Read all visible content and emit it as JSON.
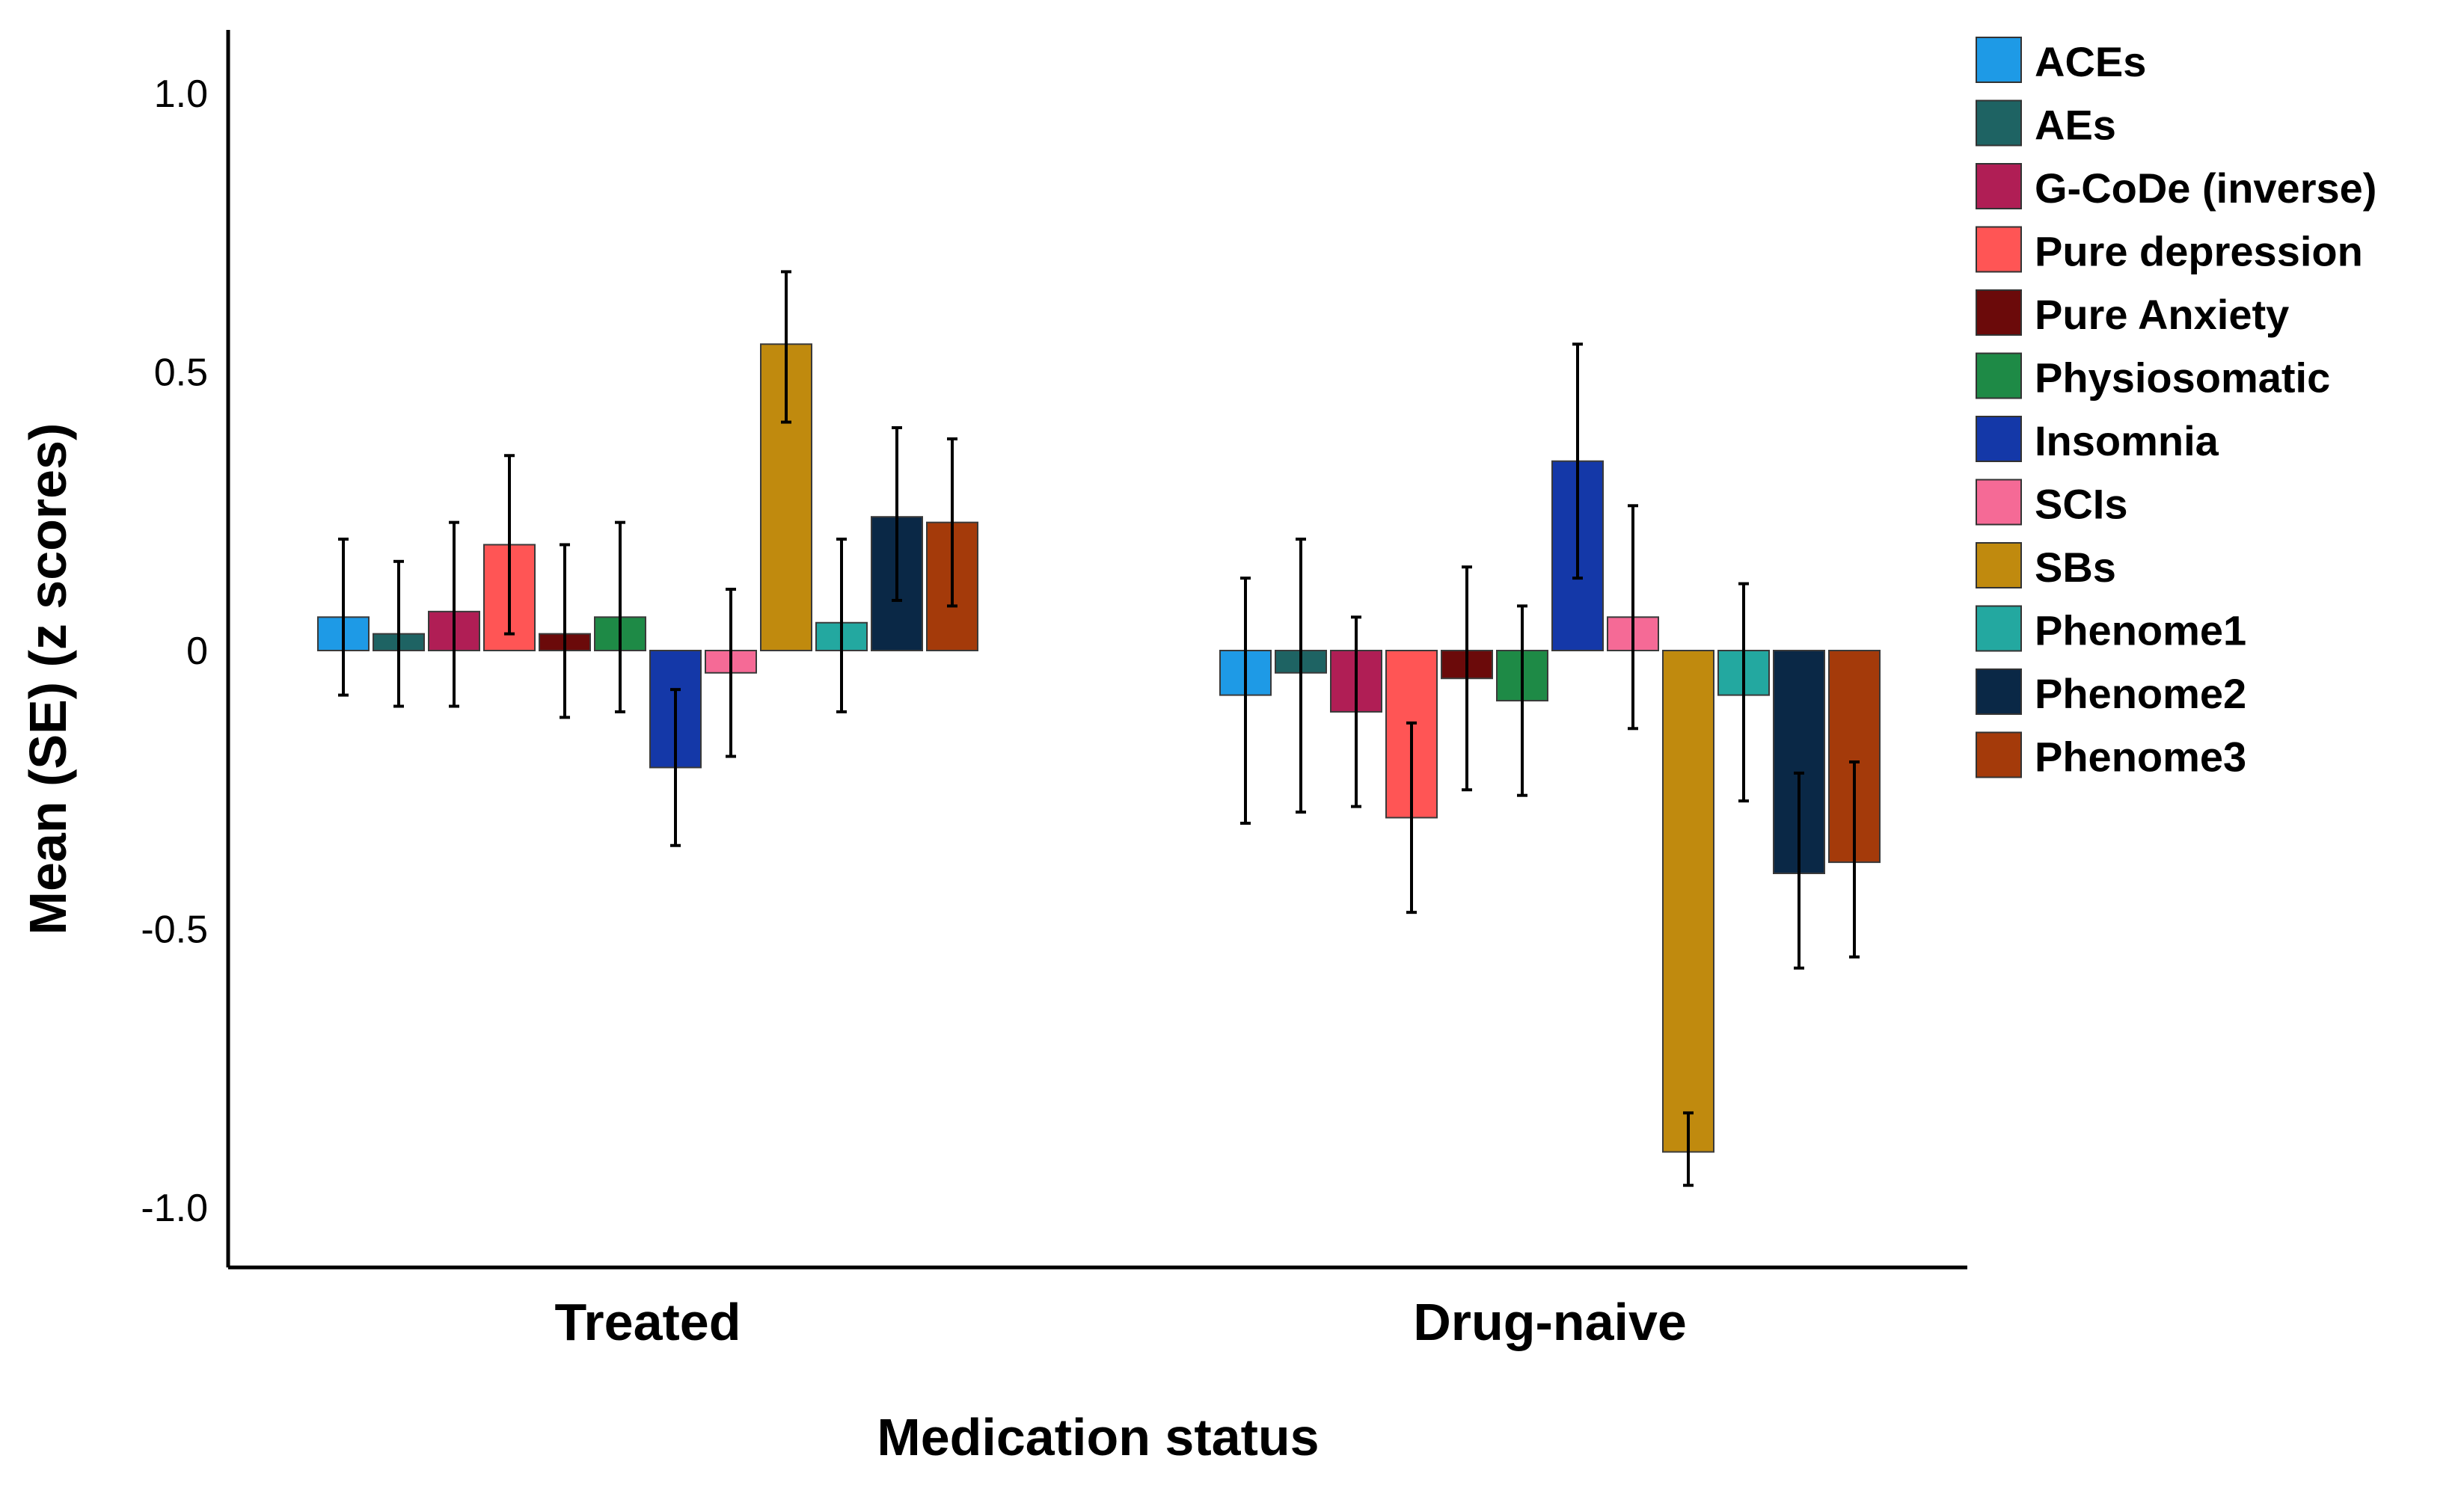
{
  "chart_data": {
    "type": "bar",
    "title": "",
    "xlabel": "Medication status",
    "ylabel": "Mean (SE) (z scores)",
    "categories": [
      "Treated",
      "Drug-naive"
    ],
    "ylim": [
      -1.1,
      1.12
    ],
    "yticks": [
      1.0,
      0.5,
      0,
      -0.5,
      -1.0
    ],
    "ytick_labels": [
      "1.0",
      "0.5",
      "0",
      "-0.5",
      "-1.0"
    ],
    "grid": false,
    "legend_position": "right",
    "series": [
      {
        "name": "ACEs",
        "color": "#1E9AE6",
        "values": [
          0.06,
          -0.08
        ],
        "err_low": [
          -0.08,
          -0.31
        ],
        "err_high": [
          0.2,
          0.13
        ]
      },
      {
        "name": "AEs",
        "color": "#1E6363",
        "values": [
          0.03,
          -0.04
        ],
        "err_low": [
          -0.1,
          -0.29
        ],
        "err_high": [
          0.16,
          0.2
        ]
      },
      {
        "name": "G-CoDe (inverse)",
        "color": "#B01E55",
        "values": [
          0.07,
          -0.11
        ],
        "err_low": [
          -0.1,
          -0.28
        ],
        "err_high": [
          0.23,
          0.06
        ]
      },
      {
        "name": "Pure depression",
        "color": "#FF5555",
        "values": [
          0.19,
          -0.3
        ],
        "err_low": [
          0.03,
          -0.47
        ],
        "err_high": [
          0.35,
          -0.13
        ]
      },
      {
        "name": "Pure Anxiety",
        "color": "#6B0A0A",
        "values": [
          0.03,
          -0.05
        ],
        "err_low": [
          -0.12,
          -0.25
        ],
        "err_high": [
          0.19,
          0.15
        ]
      },
      {
        "name": "Physiosomatic",
        "color": "#1E8A46",
        "values": [
          0.06,
          -0.09
        ],
        "err_low": [
          -0.11,
          -0.26
        ],
        "err_high": [
          0.23,
          0.08
        ]
      },
      {
        "name": "Insomnia",
        "color": "#1438A8",
        "values": [
          -0.21,
          0.34
        ],
        "err_low": [
          -0.35,
          0.13
        ],
        "err_high": [
          -0.07,
          0.55
        ]
      },
      {
        "name": "SCIs",
        "color": "#F56A96",
        "values": [
          -0.04,
          0.06
        ],
        "err_low": [
          -0.19,
          -0.14
        ],
        "err_high": [
          0.11,
          0.26
        ]
      },
      {
        "name": "SBs",
        "color": "#C08A0E",
        "values": [
          0.55,
          -0.9
        ],
        "err_low": [
          0.41,
          -0.96
        ],
        "err_high": [
          0.68,
          -0.83
        ]
      },
      {
        "name": "Phenome1",
        "color": "#23A8A0",
        "values": [
          0.05,
          -0.08
        ],
        "err_low": [
          -0.11,
          -0.27
        ],
        "err_high": [
          0.2,
          0.12
        ]
      },
      {
        "name": "Phenome2",
        "color": "#0A2846",
        "values": [
          0.24,
          -0.4
        ],
        "err_low": [
          0.09,
          -0.57
        ],
        "err_high": [
          0.4,
          -0.22
        ]
      },
      {
        "name": "Phenome3",
        "color": "#A43A0A",
        "values": [
          0.23,
          -0.38
        ],
        "err_low": [
          0.08,
          -0.55
        ],
        "err_high": [
          0.38,
          -0.2
        ]
      }
    ]
  }
}
